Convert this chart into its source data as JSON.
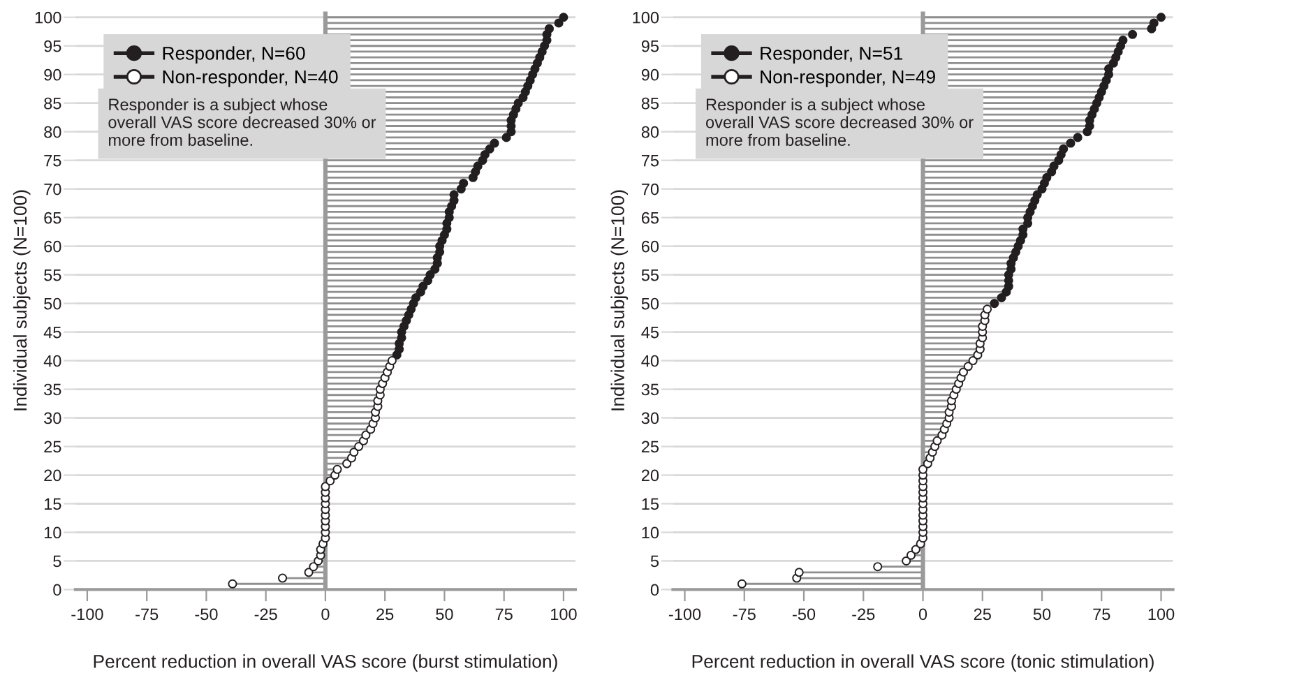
{
  "chart_data": [
    {
      "type": "lollipop",
      "orientation": "horizontal",
      "xlabel": "Percent reduction in overall VAS score (burst stimulation)",
      "ylabel": "Individual subjects (N=100)",
      "xlim": [
        -105,
        105
      ],
      "xticks": [
        -100,
        -75,
        -50,
        -25,
        0,
        25,
        50,
        75,
        100
      ],
      "ylim": [
        0,
        101
      ],
      "yticks": [
        0,
        5,
        10,
        15,
        20,
        25,
        30,
        35,
        40,
        45,
        50,
        55,
        60,
        65,
        70,
        75,
        80,
        85,
        90,
        95,
        100
      ],
      "grid": "y",
      "legend": "top left",
      "marker": "circle",
      "ref_lines": [
        {
          "axis": "x",
          "value": 0,
          "color": "#9a9a9a"
        }
      ],
      "annotations": [
        "Responder is a subject whose overall VAS score decreased 30% or more from baseline."
      ],
      "series": [
        {
          "name": "Responder, N=60",
          "color": "#231f20",
          "x": [
            41,
            42,
            43,
            44,
            45,
            46,
            47,
            48,
            49,
            50,
            51,
            52,
            53,
            54,
            55,
            56,
            57,
            58,
            59,
            60,
            61,
            62,
            63,
            64,
            65,
            66,
            67,
            68,
            69,
            70,
            71,
            72,
            73,
            74,
            75,
            76,
            77,
            78,
            79,
            80,
            81,
            82,
            83,
            84,
            85,
            86,
            87,
            88,
            89,
            90,
            91,
            92,
            93,
            94,
            95,
            96,
            97,
            98,
            99,
            100
          ],
          "values": [
            30,
            31,
            31,
            32,
            32,
            33,
            34,
            35,
            36,
            37,
            38,
            40,
            41,
            43,
            44,
            46,
            47,
            47,
            48,
            48,
            49,
            50,
            51,
            51,
            52,
            52,
            53,
            54,
            54,
            57,
            58,
            62,
            63,
            64,
            66,
            67,
            69,
            71,
            76,
            78,
            78,
            78,
            79,
            80,
            81,
            83,
            84,
            85,
            86,
            87,
            88,
            89,
            90,
            91,
            92,
            93,
            93,
            94,
            98,
            100
          ]
        },
        {
          "name": "Non-responder, N=40",
          "color": "#ffffff",
          "x": [
            1,
            2,
            3,
            4,
            5,
            6,
            7,
            8,
            9,
            10,
            11,
            12,
            13,
            14,
            15,
            16,
            17,
            18,
            19,
            20,
            21,
            22,
            23,
            24,
            25,
            26,
            27,
            28,
            29,
            30,
            31,
            32,
            33,
            34,
            35,
            36,
            37,
            38,
            39,
            40
          ],
          "values": [
            -39,
            -18,
            -7,
            -5,
            -3,
            -2,
            -2,
            -1,
            0,
            0,
            0,
            0,
            0,
            0,
            0,
            0,
            0,
            0,
            2,
            4,
            5,
            9,
            11,
            12,
            14,
            16,
            17,
            19,
            20,
            21,
            21,
            22,
            22,
            23,
            23,
            24,
            25,
            26,
            27,
            28
          ]
        }
      ]
    },
    {
      "type": "lollipop",
      "orientation": "horizontal",
      "xlabel": "Percent reduction in overall VAS score (tonic stimulation)",
      "ylabel": "Individual subjects (N=100)",
      "xlim": [
        -105,
        105
      ],
      "xticks": [
        -100,
        -75,
        -50,
        -25,
        0,
        25,
        50,
        75,
        100
      ],
      "ylim": [
        0,
        101
      ],
      "yticks": [
        0,
        5,
        10,
        15,
        20,
        25,
        30,
        35,
        40,
        45,
        50,
        55,
        60,
        65,
        70,
        75,
        80,
        85,
        90,
        95,
        100
      ],
      "grid": "y",
      "legend": "top left",
      "marker": "circle",
      "ref_lines": [
        {
          "axis": "x",
          "value": 0,
          "color": "#9a9a9a"
        }
      ],
      "annotations": [
        "Responder is a subject whose overall VAS score decreased 30% or more from baseline."
      ],
      "series": [
        {
          "name": "Responder, N=51",
          "color": "#231f20",
          "x": [
            50,
            51,
            52,
            53,
            54,
            55,
            56,
            57,
            58,
            59,
            60,
            61,
            62,
            63,
            64,
            65,
            66,
            67,
            68,
            69,
            70,
            71,
            72,
            73,
            74,
            75,
            76,
            77,
            78,
            79,
            80,
            81,
            82,
            83,
            84,
            85,
            86,
            87,
            88,
            89,
            90,
            91,
            92,
            93,
            94,
            95,
            96,
            97,
            98,
            99,
            100
          ],
          "values": [
            30,
            33,
            35,
            36,
            36,
            36,
            37,
            37,
            38,
            39,
            40,
            41,
            42,
            42,
            44,
            44,
            45,
            46,
            47,
            48,
            50,
            51,
            52,
            54,
            55,
            57,
            58,
            59,
            62,
            65,
            69,
            70,
            70,
            71,
            72,
            73,
            74,
            75,
            76,
            77,
            78,
            78,
            80,
            81,
            82,
            83,
            84,
            88,
            96,
            97,
            100
          ]
        },
        {
          "name": "Non-responder, N=49",
          "color": "#ffffff",
          "x": [
            1,
            2,
            3,
            4,
            5,
            6,
            7,
            8,
            9,
            10,
            11,
            12,
            13,
            14,
            15,
            16,
            17,
            18,
            19,
            20,
            21,
            22,
            23,
            24,
            25,
            26,
            27,
            28,
            29,
            30,
            31,
            32,
            33,
            34,
            35,
            36,
            37,
            38,
            39,
            40,
            41,
            42,
            43,
            44,
            45,
            46,
            47,
            48,
            49
          ],
          "values": [
            -76,
            -53,
            -52,
            -19,
            -7,
            -5,
            -3,
            -1,
            0,
            0,
            0,
            0,
            0,
            0,
            0,
            0,
            0,
            0,
            0,
            0,
            0,
            2,
            3,
            4,
            5,
            6,
            8,
            9,
            10,
            11,
            11,
            12,
            12,
            13,
            14,
            15,
            16,
            17,
            19,
            21,
            23,
            24,
            24,
            25,
            25,
            25,
            26,
            26,
            27
          ]
        }
      ]
    }
  ]
}
